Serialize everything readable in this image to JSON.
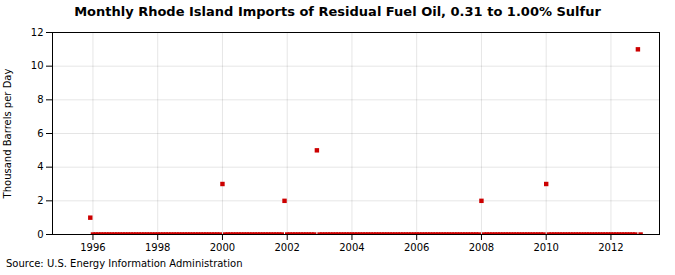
{
  "chart_data": {
    "type": "scatter",
    "title": "Monthly Rhode Island Imports of Residual Fuel Oil, 0.31 to 1.00% Sulfur",
    "ylabel": "Thousand Barrels per Day",
    "source": "Source: U.S. Energy Information Administration",
    "x": [
      1995.917,
      1996.0,
      1996.083,
      1996.167,
      1996.25,
      1996.333,
      1996.417,
      1996.5,
      1996.583,
      1996.667,
      1996.75,
      1996.833,
      1996.917,
      1997.0,
      1997.083,
      1997.167,
      1997.25,
      1997.333,
      1997.417,
      1997.5,
      1997.583,
      1997.667,
      1997.75,
      1997.833,
      1997.917,
      1998.0,
      1998.083,
      1998.167,
      1998.25,
      1998.333,
      1998.417,
      1998.5,
      1998.583,
      1998.667,
      1998.75,
      1998.833,
      1998.917,
      1999.0,
      1999.083,
      1999.167,
      1999.25,
      1999.333,
      1999.417,
      1999.5,
      1999.583,
      1999.667,
      1999.75,
      1999.833,
      1999.917,
      2000.0,
      2000.083,
      2000.167,
      2000.25,
      2000.333,
      2000.417,
      2000.5,
      2000.583,
      2000.667,
      2000.75,
      2000.833,
      2000.917,
      2001.0,
      2001.083,
      2001.167,
      2001.25,
      2001.333,
      2001.417,
      2001.5,
      2001.583,
      2001.667,
      2001.75,
      2001.833,
      2001.917,
      2002.0,
      2002.083,
      2002.167,
      2002.25,
      2002.333,
      2002.417,
      2002.5,
      2002.583,
      2002.667,
      2002.75,
      2002.833,
      2002.917,
      2003.0,
      2003.083,
      2003.167,
      2003.25,
      2003.333,
      2003.417,
      2003.5,
      2003.583,
      2003.667,
      2003.75,
      2003.833,
      2003.917,
      2004.0,
      2004.083,
      2004.167,
      2004.25,
      2004.333,
      2004.417,
      2004.5,
      2004.583,
      2004.667,
      2004.75,
      2004.833,
      2004.917,
      2005.0,
      2005.083,
      2005.167,
      2005.25,
      2005.333,
      2005.417,
      2005.5,
      2005.583,
      2005.667,
      2005.75,
      2005.833,
      2005.917,
      2006.0,
      2006.083,
      2006.167,
      2006.25,
      2006.333,
      2006.417,
      2006.5,
      2006.583,
      2006.667,
      2006.75,
      2006.833,
      2006.917,
      2007.0,
      2007.083,
      2007.167,
      2007.25,
      2007.333,
      2007.417,
      2007.5,
      2007.583,
      2007.667,
      2007.75,
      2007.833,
      2007.917,
      2008.0,
      2008.083,
      2008.167,
      2008.25,
      2008.333,
      2008.417,
      2008.5,
      2008.583,
      2008.667,
      2008.75,
      2008.833,
      2008.917,
      2009.0,
      2009.083,
      2009.167,
      2009.25,
      2009.333,
      2009.417,
      2009.5,
      2009.583,
      2009.667,
      2009.75,
      2009.833,
      2009.917,
      2010.0,
      2010.083,
      2010.167,
      2010.25,
      2010.333,
      2010.417,
      2010.5,
      2010.583,
      2010.667,
      2010.75,
      2010.833,
      2010.917,
      2011.0,
      2011.083,
      2011.167,
      2011.25,
      2011.333,
      2011.417,
      2011.5,
      2011.583,
      2011.667,
      2011.75,
      2011.833,
      2011.917,
      2012.0,
      2012.083,
      2012.167,
      2012.25,
      2012.333,
      2012.417,
      2012.5,
      2012.583,
      2012.667,
      2012.75,
      2012.833,
      2012.917
    ],
    "values": [
      1.0,
      0.0,
      0.0,
      0.0,
      0.0,
      0.0,
      0.0,
      0.0,
      0.0,
      0.0,
      0.0,
      0.0,
      0.0,
      0.0,
      0.0,
      0.0,
      0.0,
      0.0,
      0.0,
      0.0,
      0.0,
      0.0,
      0.0,
      0.0,
      0.0,
      0.0,
      0.0,
      0.0,
      0.0,
      0.0,
      0.0,
      0.0,
      0.0,
      0.0,
      0.0,
      0.0,
      0.0,
      0.0,
      0.0,
      0.0,
      0.0,
      0.0,
      0.0,
      0.0,
      0.0,
      0.0,
      0.0,
      0.0,
      0.0,
      3.0,
      0.0,
      0.0,
      0.0,
      0.0,
      0.0,
      0.0,
      0.0,
      0.0,
      0.0,
      0.0,
      0.0,
      0.0,
      0.0,
      0.0,
      0.0,
      0.0,
      0.0,
      0.0,
      0.0,
      0.0,
      0.0,
      0.0,
      2.0,
      0.0,
      0.0,
      0.0,
      0.0,
      0.0,
      0.0,
      0.0,
      0.0,
      0.0,
      0.0,
      0.0,
      5.0,
      0.0,
      0.0,
      0.0,
      0.0,
      0.0,
      0.0,
      0.0,
      0.0,
      0.0,
      0.0,
      0.0,
      0.0,
      0.0,
      0.0,
      0.0,
      0.0,
      0.0,
      0.0,
      0.0,
      0.0,
      0.0,
      0.0,
      0.0,
      0.0,
      0.0,
      0.0,
      0.0,
      0.0,
      0.0,
      0.0,
      0.0,
      0.0,
      0.0,
      0.0,
      0.0,
      0.0,
      0.0,
      0.0,
      0.0,
      0.0,
      0.0,
      0.0,
      0.0,
      0.0,
      0.0,
      0.0,
      0.0,
      0.0,
      0.0,
      0.0,
      0.0,
      0.0,
      0.0,
      0.0,
      0.0,
      0.0,
      0.0,
      0.0,
      0.0,
      0.0,
      2.0,
      0.0,
      0.0,
      0.0,
      0.0,
      0.0,
      0.0,
      0.0,
      0.0,
      0.0,
      0.0,
      0.0,
      0.0,
      0.0,
      0.0,
      0.0,
      0.0,
      0.0,
      0.0,
      0.0,
      0.0,
      0.0,
      0.0,
      0.0,
      3.0,
      0.0,
      0.0,
      0.0,
      0.0,
      0.0,
      0.0,
      0.0,
      0.0,
      0.0,
      0.0,
      0.0,
      0.0,
      0.0,
      0.0,
      0.0,
      0.0,
      0.0,
      0.0,
      0.0,
      0.0,
      0.0,
      0.0,
      0.0,
      0.0,
      0.0,
      0.0,
      0.0,
      0.0,
      0.0,
      0.0,
      0.0,
      0.0,
      0.0,
      11.0,
      0.0
    ],
    "color": "#cc0000",
    "marker": "square",
    "xlim": [
      1994.75,
      2013.5
    ],
    "ylim": [
      0,
      12
    ],
    "xticks": [
      1996,
      1998,
      2000,
      2002,
      2004,
      2006,
      2008,
      2010,
      2012
    ],
    "yticks": [
      0,
      2,
      4,
      6,
      8,
      10,
      12
    ],
    "grid": true
  }
}
